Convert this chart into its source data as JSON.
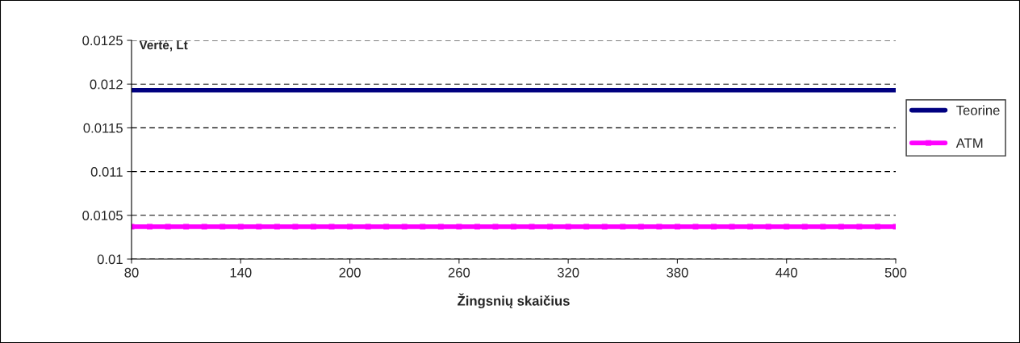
{
  "chart_data": {
    "type": "line",
    "ylabel": "Vertė, Lt",
    "xlabel": "Žingsnių skaičius",
    "x": [
      80,
      90,
      100,
      110,
      120,
      130,
      140,
      150,
      160,
      170,
      180,
      190,
      200,
      210,
      220,
      230,
      240,
      250,
      260,
      270,
      280,
      290,
      300,
      310,
      320,
      330,
      340,
      350,
      360,
      370,
      380,
      390,
      400,
      410,
      420,
      430,
      440,
      450,
      460,
      470,
      480,
      490,
      500
    ],
    "series": [
      {
        "name": "Teorine",
        "color": "#000080",
        "marker": "none",
        "values": [
          0.01193,
          0.01193,
          0.01193,
          0.01193,
          0.01193,
          0.01193,
          0.01193,
          0.01193,
          0.01193,
          0.01193,
          0.01193,
          0.01193,
          0.01193,
          0.01193,
          0.01193,
          0.01193,
          0.01193,
          0.01193,
          0.01193,
          0.01193,
          0.01193,
          0.01193,
          0.01193,
          0.01193,
          0.01193,
          0.01193,
          0.01193,
          0.01193,
          0.01193,
          0.01193,
          0.01193,
          0.01193,
          0.01193,
          0.01193,
          0.01193,
          0.01193,
          0.01193,
          0.01193,
          0.01193,
          0.01193,
          0.01193,
          0.01193,
          0.01193
        ]
      },
      {
        "name": "ATM",
        "color": "#ff00ff",
        "marker": "square",
        "values": [
          0.01037,
          0.01037,
          0.01037,
          0.01037,
          0.01037,
          0.01037,
          0.01037,
          0.01037,
          0.01037,
          0.01037,
          0.01037,
          0.01037,
          0.01037,
          0.01037,
          0.01037,
          0.01037,
          0.01037,
          0.01037,
          0.01037,
          0.01037,
          0.01037,
          0.01037,
          0.01037,
          0.01037,
          0.01037,
          0.01037,
          0.01037,
          0.01037,
          0.01037,
          0.01037,
          0.01037,
          0.01037,
          0.01037,
          0.01037,
          0.01037,
          0.01037,
          0.01037,
          0.01037,
          0.01037,
          0.01037,
          0.01037,
          0.01037,
          0.01037
        ]
      }
    ],
    "xlim": [
      80,
      500
    ],
    "xticks": [
      80,
      140,
      200,
      260,
      320,
      380,
      440,
      500
    ],
    "ylim": [
      0.01,
      0.0125
    ],
    "yticks": [
      0.01,
      0.0105,
      0.011,
      0.0115,
      0.012,
      0.0125
    ],
    "grid": "y",
    "legend": "right",
    "line_style": "solid"
  }
}
